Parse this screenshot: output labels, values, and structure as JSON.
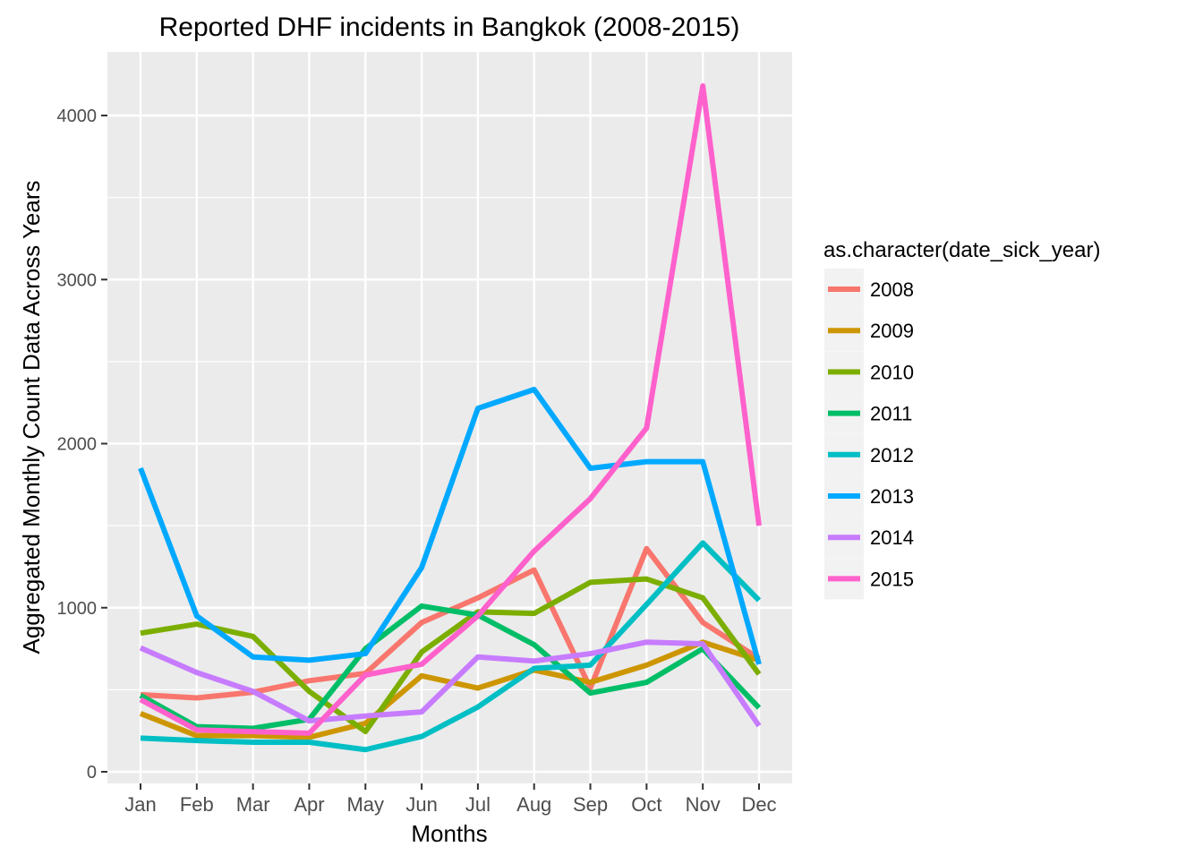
{
  "chart_data": {
    "type": "line",
    "title": "Reported DHF incidents in Bangkok (2008-2015)",
    "xlabel": "Months",
    "ylabel": "Aggregated Monthly Count Data Across Years",
    "categories": [
      "Jan",
      "Feb",
      "Mar",
      "Apr",
      "May",
      "Jun",
      "Jul",
      "Aug",
      "Sep",
      "Oct",
      "Nov",
      "Dec"
    ],
    "ylim": [
      0,
      4000
    ],
    "yticks": [
      0,
      1000,
      2000,
      3000,
      4000
    ],
    "grid": true,
    "legend": {
      "title": "as.character(date_sick_year)",
      "placement": "right"
    },
    "series": [
      {
        "name": "2008",
        "color": "#F8766D",
        "values": [
          470,
          450,
          485,
          555,
          600,
          910,
          1060,
          1230,
          510,
          1360,
          910,
          690
        ]
      },
      {
        "name": "2009",
        "color": "#CD9600",
        "values": [
          355,
          220,
          220,
          210,
          295,
          585,
          510,
          620,
          545,
          650,
          790,
          680
        ]
      },
      {
        "name": "2010",
        "color": "#7CAE00",
        "values": [
          845,
          900,
          825,
          490,
          245,
          730,
          975,
          965,
          1155,
          1175,
          1060,
          595
        ]
      },
      {
        "name": "2011",
        "color": "#00BE67",
        "values": [
          465,
          275,
          265,
          320,
          750,
          1010,
          955,
          775,
          480,
          545,
          750,
          390
        ]
      },
      {
        "name": "2012",
        "color": "#00BFC4",
        "values": [
          205,
          190,
          180,
          180,
          135,
          215,
          395,
          630,
          650,
          1020,
          1395,
          1045
        ]
      },
      {
        "name": "2013",
        "color": "#00A9FF",
        "values": [
          1850,
          950,
          700,
          680,
          720,
          1245,
          2215,
          2330,
          1850,
          1890,
          1890,
          655
        ]
      },
      {
        "name": "2014",
        "color": "#C77CFF",
        "values": [
          755,
          605,
          490,
          310,
          340,
          365,
          700,
          675,
          720,
          790,
          780,
          280
        ]
      },
      {
        "name": "2015",
        "color": "#FF61CC",
        "values": [
          440,
          255,
          245,
          235,
          590,
          655,
          950,
          1345,
          1665,
          2095,
          4180,
          1500
        ]
      }
    ]
  }
}
